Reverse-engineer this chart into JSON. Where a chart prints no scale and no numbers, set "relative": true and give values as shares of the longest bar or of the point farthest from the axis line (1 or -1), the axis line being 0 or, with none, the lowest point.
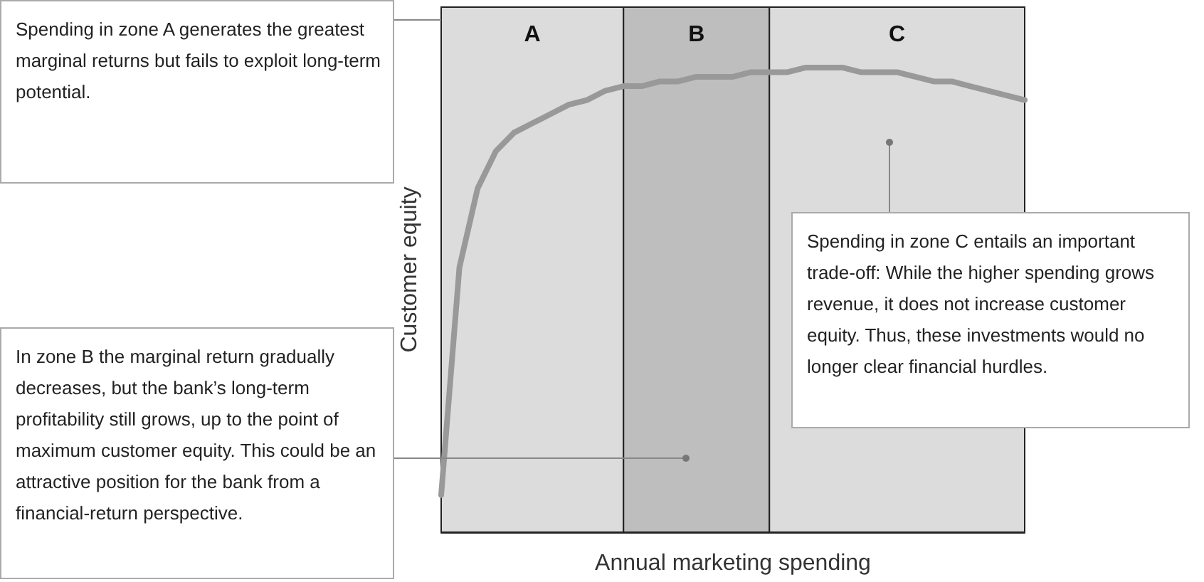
{
  "chart_data": {
    "type": "line",
    "relative": true,
    "xlabel": "Annual marketing spending",
    "ylabel": "Customer equity",
    "categories": [
      null,
      null,
      null,
      null,
      null,
      null,
      null,
      null,
      null,
      null,
      null,
      null,
      null,
      null,
      null,
      null,
      null,
      null,
      null,
      null,
      null,
      null,
      null,
      null,
      null,
      null,
      null,
      null,
      null,
      null,
      null,
      null,
      null
    ],
    "grid": false,
    "marker": "none",
    "line_style": "solid",
    "series": [
      {
        "color": "#999999",
        "values": [
          0.08,
          0.57,
          0.74,
          0.82,
          0.86,
          0.88,
          0.9,
          0.92,
          0.93,
          0.95,
          0.96,
          0.96,
          0.97,
          0.97,
          0.98,
          0.98,
          0.98,
          0.99,
          0.99,
          0.99,
          1,
          1,
          1,
          0.99,
          0.99,
          0.99,
          0.98,
          0.97,
          0.97,
          0.96,
          0.95,
          0.94,
          0.93
        ]
      }
    ],
    "annotations": [
      "A",
      "B",
      "C",
      "Spending in zone A generates the greatest marginal returns but fails to exploit long-term potential.",
      "In zone B the marginal return gradually decreases, but the bank’s long-term profitability still grows, up to the point of maximum customer equity. This could be an attractive position for the bank from a financial-return perspective.",
      "Spending in zone C entails an important trade-off: While the higher spending grows revenue, it does not increase customer equity. Thus, these investments would no longer clear financial hurdles."
    ]
  }
}
